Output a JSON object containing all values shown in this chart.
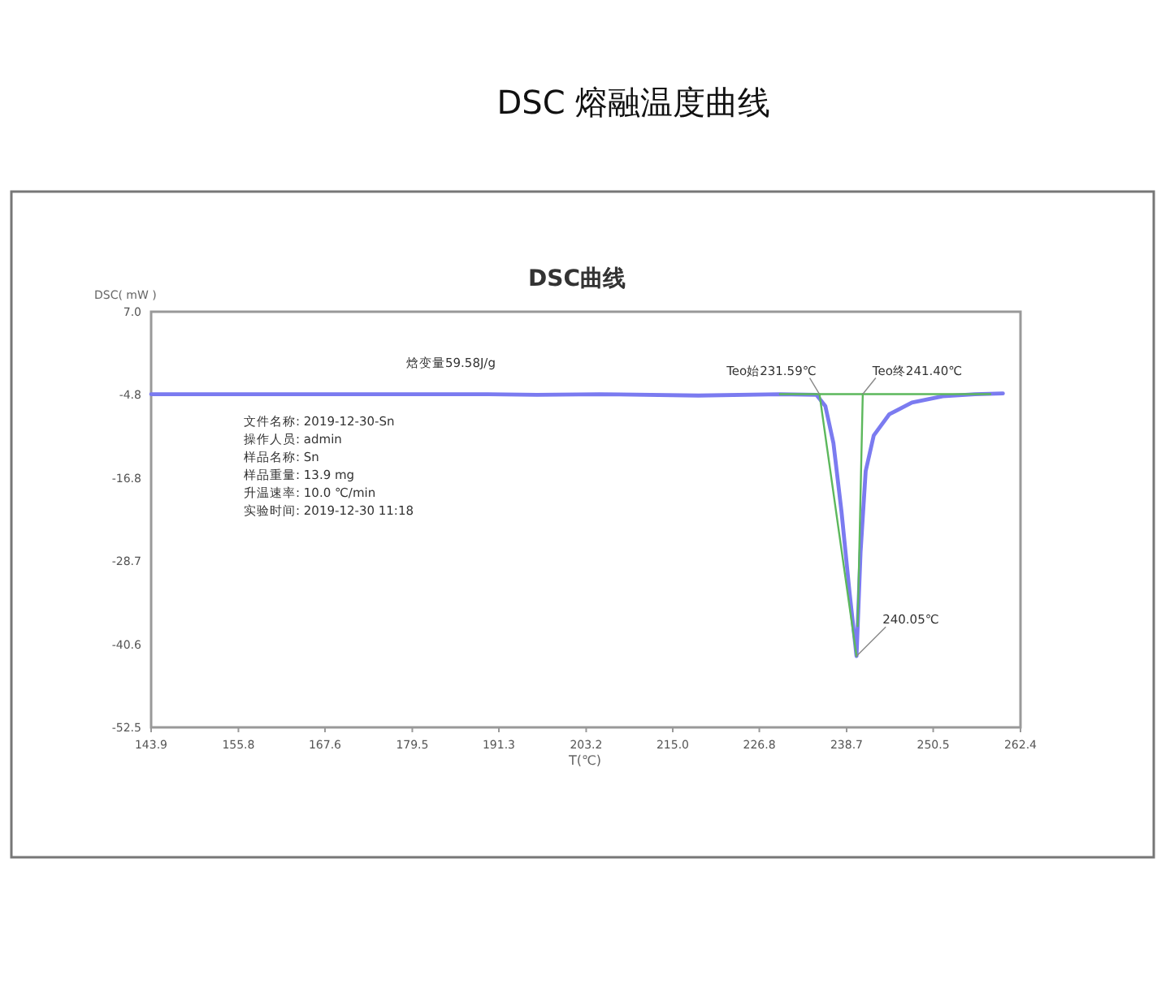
{
  "chart_data": {
    "type": "line",
    "title": "DSC 熔融温度曲线",
    "subtitle": "DSC曲线",
    "xlabel": "T(℃)",
    "ylabel": "DSC( mW )",
    "xlim": [
      143.9,
      262.4
    ],
    "xticks": [
      143.9,
      155.8,
      167.6,
      179.5,
      191.3,
      203.2,
      {
        "value": 215.0,
        "label": "215.0"
      },
      226.8,
      238.7,
      250.5,
      262.4
    ],
    "ylim": [
      -52.5,
      7.0
    ],
    "yticks": [
      {
        "value": 7.0,
        "label": "7.0"
      },
      -4.8,
      -16.8,
      -28.7,
      -40.6,
      -52.5
    ],
    "grid": false,
    "series": [
      {
        "color": "#7b7bf0",
        "x": [
          143.9,
          170.0,
          189.8,
          196.5,
          205.0,
          218.5,
          229.6,
          234.6,
          235.8,
          236.9,
          238.0,
          239.1,
          240.05,
          240.6,
          241.3,
          242.4,
          244.5,
          247.6,
          251.8,
          256.2,
          260.0
        ],
        "values": [
          -4.8,
          -4.8,
          -4.8,
          -4.9,
          -4.8,
          -5.0,
          -4.8,
          -4.9,
          -6.5,
          -11.8,
          -21.6,
          -33.2,
          -42.3,
          -27.4,
          -15.8,
          -10.7,
          -7.7,
          -6.0,
          -5.1,
          -4.8,
          -4.7
        ]
      },
      {
        "color": "#5cb85c",
        "x": [
          229.6,
          258.3
        ],
        "values": [
          -4.8,
          -4.8
        ]
      },
      {
        "color": "#5cb85c",
        "x": [
          235.0,
          240.05
        ],
        "values": [
          -4.8,
          -42.3
        ]
      },
      {
        "color": "#5cb85c",
        "x": [
          240.9,
          240.2
        ],
        "values": [
          -4.8,
          -38.0
        ]
      }
    ],
    "annotations": [
      "焓变量59.58J/g",
      "文件名称:  2019-12-30-Sn",
      "操作人员:  admin",
      "样品名称:  Sn",
      "样品重量:  13.9 mg",
      "升温速率:  10.0 ℃/min",
      "实验时间:  2019-12-30 11:18",
      {
        "text": "Teo始231.59℃",
        "x": 235.0,
        "y": -4.8
      },
      {
        "text": "Teo终241.40℃",
        "x": 240.9,
        "y": -4.8
      },
      {
        "text": "240.05℃",
        "x": 240.05,
        "y": -42.3
      }
    ]
  }
}
